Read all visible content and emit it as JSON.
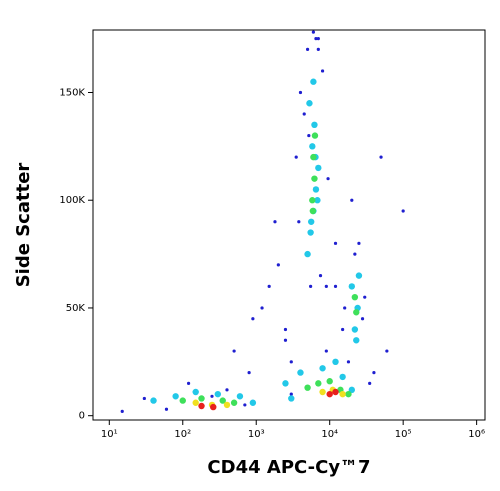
{
  "chart_data": {
    "type": "scatter",
    "x_label": "CD44 APC-Cy™7",
    "y_label": "Side Scatter",
    "x_log": true,
    "xlim": [
      6,
      1300000
    ],
    "xticks": [
      {
        "value": 10,
        "label": "10¹"
      },
      {
        "value": 100,
        "label": "10²"
      },
      {
        "value": 1000,
        "label": "10³"
      },
      {
        "value": 10000,
        "label": "10⁴"
      },
      {
        "value": 100000,
        "label": "10⁵"
      },
      {
        "value": 1000000,
        "label": "10⁶"
      }
    ],
    "ylim": [
      -2000,
      179000
    ],
    "yticks": [
      0,
      {
        "value": 50000,
        "label": "50K"
      },
      {
        "value": 100000,
        "label": "100K"
      },
      {
        "value": 150000,
        "label": "150K"
      }
    ],
    "series": [
      {
        "color": "#1f1fd0",
        "x": [
          15,
          30,
          60,
          120,
          500,
          900,
          1500,
          2500,
          1800,
          3000,
          4000,
          5000,
          7000,
          9000,
          12000,
          20000,
          30000,
          40000,
          60000,
          100000,
          3500,
          4500,
          8000,
          9500,
          2000,
          1200,
          800,
          400,
          3000,
          5500,
          7500,
          6500,
          5200,
          4800,
          9000,
          15000,
          25000,
          18000,
          35000,
          50000,
          2500,
          700,
          250,
          12000,
          16000,
          28000,
          22000,
          3800,
          6000,
          7000
        ],
        "values": [
          2000,
          8000,
          3000,
          15000,
          30000,
          45000,
          60000,
          40000,
          90000,
          25000,
          150000,
          170000,
          175000,
          60000,
          80000,
          100000,
          55000,
          20000,
          30000,
          95000,
          120000,
          140000,
          160000,
          110000,
          70000,
          50000,
          20000,
          12000,
          10000,
          60000,
          65000,
          175000,
          130000,
          75000,
          30000,
          40000,
          80000,
          25000,
          15000,
          120000,
          35000,
          5000,
          9000,
          60000,
          50000,
          45000,
          75000,
          90000,
          178000,
          170000
        ]
      },
      {
        "color": "#22c8e8",
        "x": [
          5000,
          5500,
          6000,
          6500,
          7000,
          5800,
          6200,
          5300,
          6800,
          6000,
          5600,
          6400,
          22000,
          24000,
          20000,
          25000,
          23000,
          40,
          80,
          150,
          300,
          600,
          900,
          2500,
          4000,
          8000,
          15000,
          20000,
          3000,
          12000
        ],
        "values": [
          75000,
          85000,
          95000,
          105000,
          115000,
          125000,
          135000,
          145000,
          100000,
          155000,
          90000,
          120000,
          40000,
          50000,
          60000,
          65000,
          35000,
          7000,
          9000,
          11000,
          10000,
          9000,
          6000,
          15000,
          20000,
          22000,
          18000,
          12000,
          8000,
          25000
        ]
      },
      {
        "color": "#3ee05a",
        "x": [
          5800,
          6200,
          6000,
          5900,
          6300,
          23000,
          22000,
          100,
          180,
          350,
          500,
          5000,
          7000,
          10000,
          14000,
          18000
        ],
        "values": [
          100000,
          110000,
          120000,
          95000,
          130000,
          48000,
          55000,
          7000,
          8000,
          7000,
          6000,
          13000,
          15000,
          16000,
          12000,
          10000
        ]
      },
      {
        "color": "#f0e020",
        "x": [
          150,
          250,
          400,
          8000,
          11000,
          15000
        ],
        "values": [
          6000,
          5000,
          5000,
          11000,
          12000,
          10000
        ]
      },
      {
        "color": "#e8201c",
        "x": [
          180,
          260,
          10000,
          12000
        ],
        "values": [
          4500,
          4000,
          10000,
          11000
        ]
      }
    ]
  }
}
